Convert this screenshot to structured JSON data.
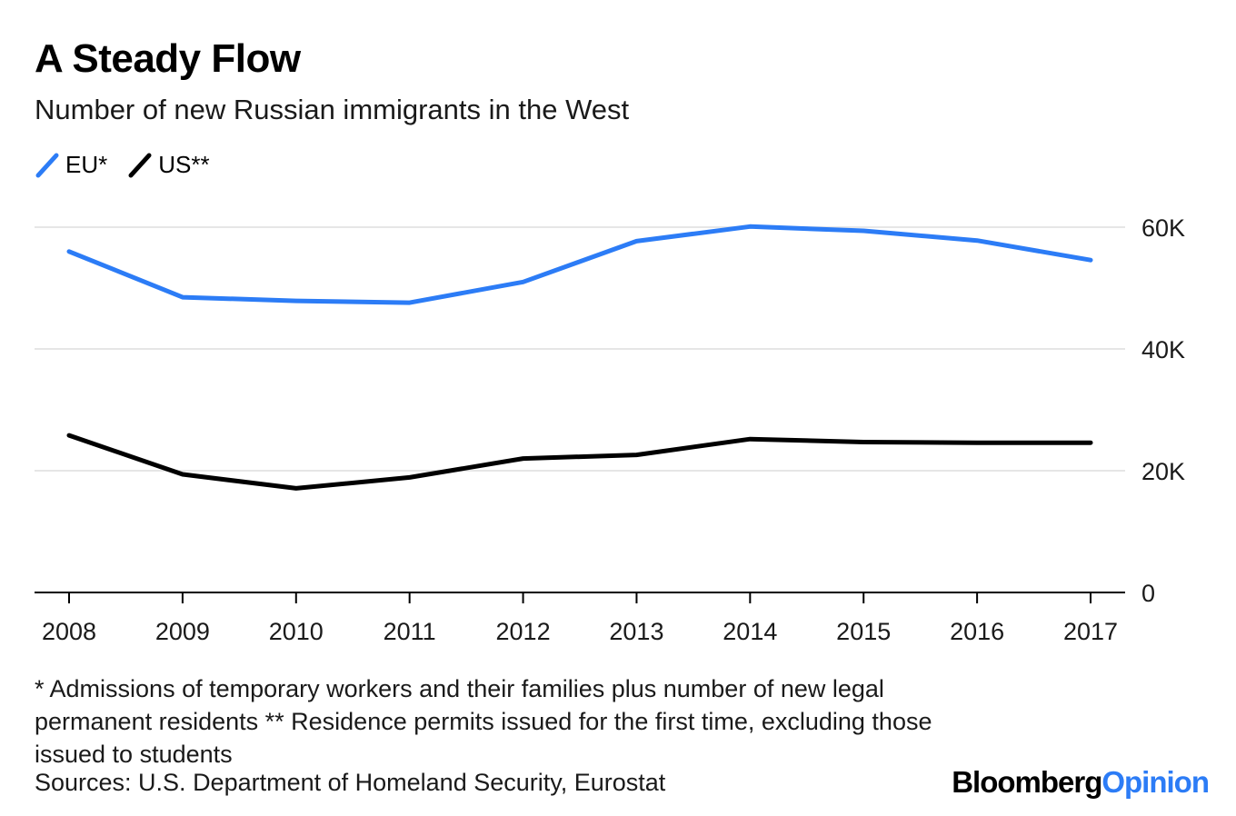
{
  "header": {
    "title": "A Steady Flow",
    "subtitle": "Number of new Russian immigrants in the West"
  },
  "legend": [
    {
      "label": "EU*",
      "color": "#2c7cf6"
    },
    {
      "label": "US**",
      "color": "#000000"
    }
  ],
  "footer": {
    "footnote": "* Admissions of temporary workers and their families plus number of new legal permanent residents ** Residence permits issued for the first time, excluding those issued to students",
    "sources": "Sources: U.S. Department of Homeland Security, Eurostat",
    "logo_part1": "Bloomberg",
    "logo_part2": "Opinion"
  },
  "chart_data": {
    "type": "line",
    "title": "A Steady Flow",
    "subtitle": "Number of new Russian immigrants in the West",
    "x": [
      "2008",
      "2009",
      "2010",
      "2011",
      "2012",
      "2013",
      "2014",
      "2015",
      "2016",
      "2017"
    ],
    "series": [
      {
        "name": "EU*",
        "color": "#2c7cf6",
        "values": [
          56000,
          48500,
          47900,
          47600,
          51000,
          57700,
          60100,
          59400,
          57800,
          54600
        ]
      },
      {
        "name": "US**",
        "color": "#000000",
        "values": [
          25800,
          19400,
          17100,
          18900,
          22000,
          22600,
          25200,
          24700,
          24600,
          24600
        ]
      }
    ],
    "ylim": [
      0,
      60000
    ],
    "yticks": [
      0,
      20000,
      40000,
      60000
    ],
    "ytick_labels": [
      "0",
      "20K",
      "40K",
      "60K"
    ],
    "y_axis_position": "right",
    "grid": true,
    "legend_position": "top-left"
  }
}
